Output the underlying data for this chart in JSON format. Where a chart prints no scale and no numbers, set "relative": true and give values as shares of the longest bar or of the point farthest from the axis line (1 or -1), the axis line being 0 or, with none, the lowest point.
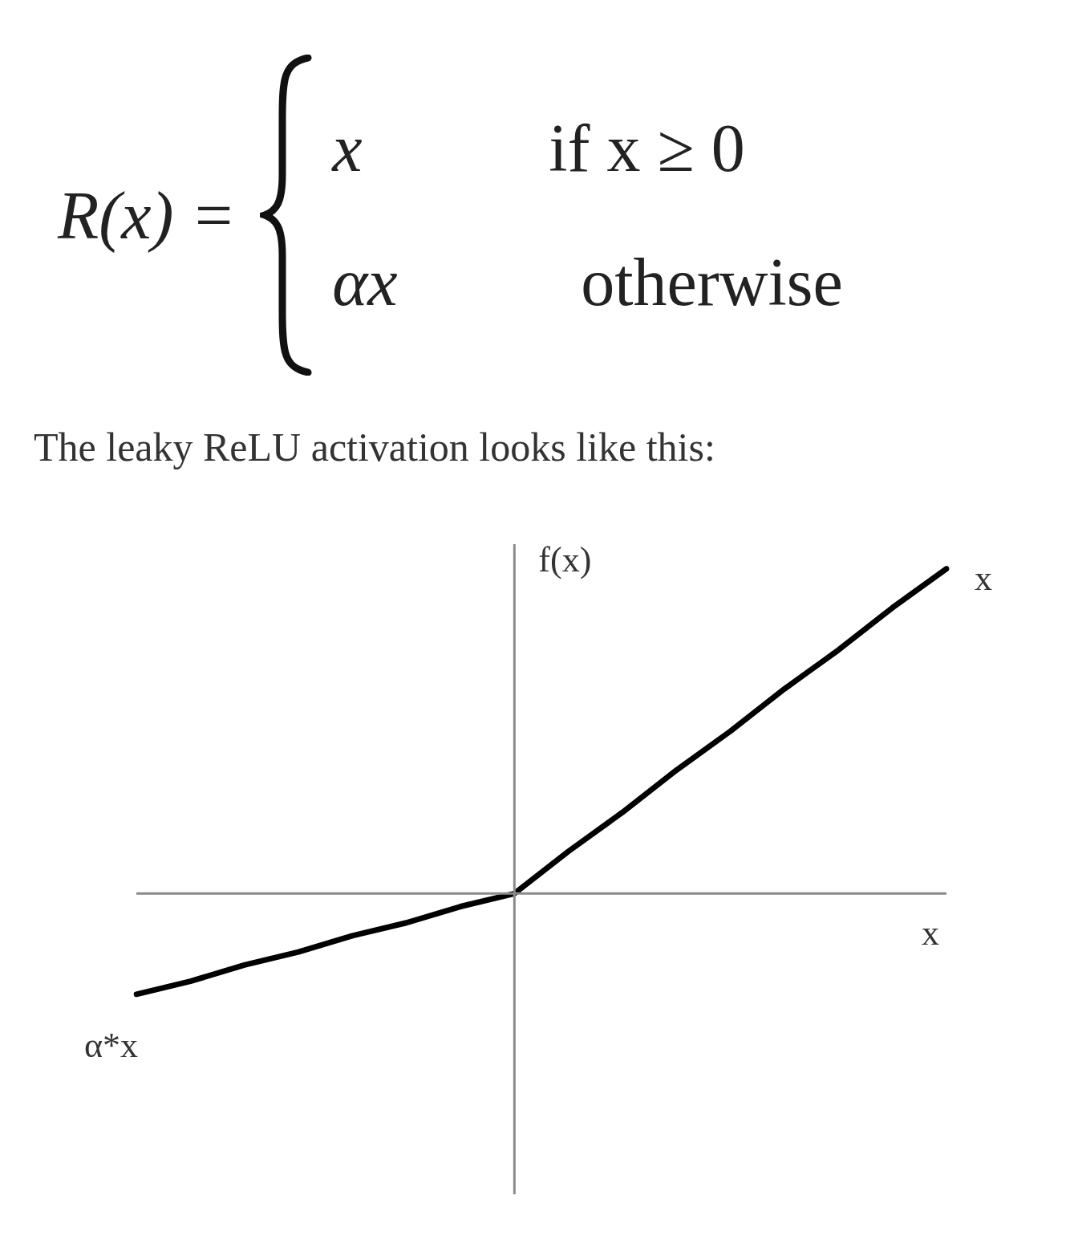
{
  "chart_data": {
    "type": "line",
    "title": "The leaky ReLU activation looks like this:",
    "xlabel": "x",
    "ylabel": "f(x)",
    "relative": true,
    "marker": "none",
    "legend": false,
    "categories": [
      null,
      null,
      null,
      null,
      null,
      null,
      null,
      null,
      null,
      null,
      null,
      null,
      null,
      null,
      null,
      null
    ],
    "series": [
      {
        "color": "#000000",
        "values": [
          -0.31,
          -0.27,
          -0.22,
          -0.18,
          -0.13,
          -0.09,
          -0.04,
          0,
          0.13,
          0.25,
          0.38,
          0.5,
          0.63,
          0.75,
          0.88,
          1
        ]
      }
    ],
    "annotations": [
      "R(x) =",
      "x",
      "if x ≥ 0",
      "αx",
      "otherwise",
      "x",
      "α*x"
    ]
  }
}
